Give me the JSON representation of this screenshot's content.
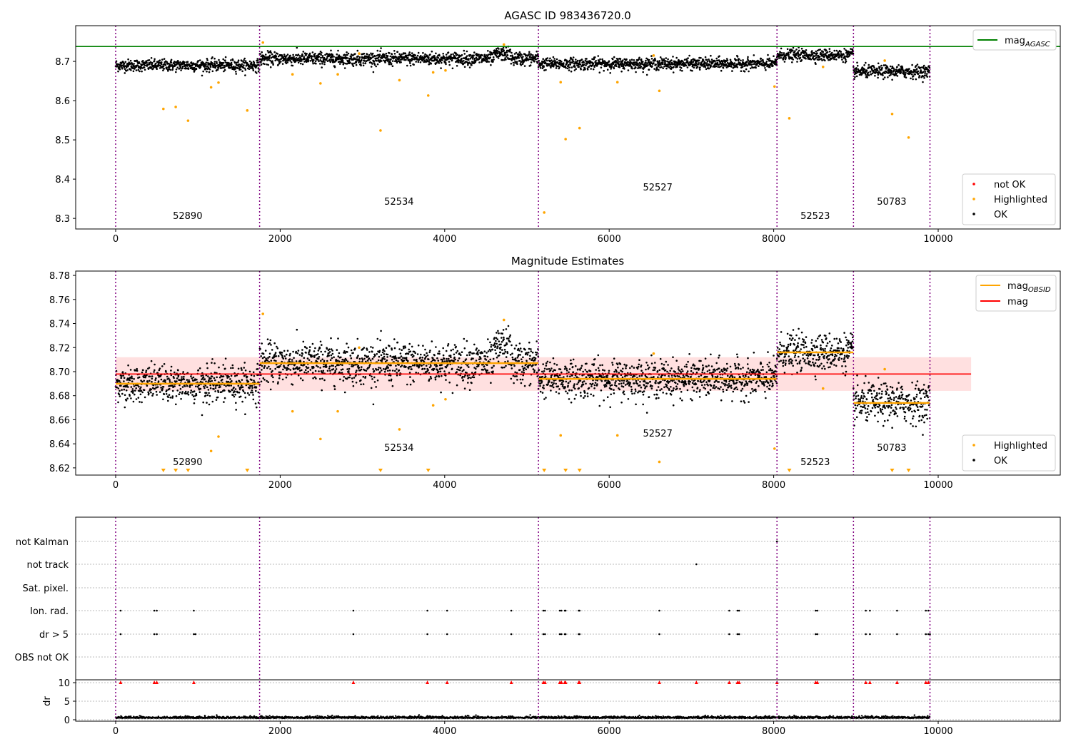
{
  "chart_data": [
    {
      "type": "scatter",
      "title": "AGASC ID 983436720.0",
      "ylim": [
        8.273,
        8.791
      ],
      "xlim": [
        -500,
        11500
      ],
      "yticks": [
        8.3,
        8.4,
        8.5,
        8.6,
        8.7
      ],
      "xticks": [
        0,
        2000,
        4000,
        6000,
        8000,
        10000
      ],
      "mag_agasc": 8.738,
      "legend_lines": [
        {
          "label": "mag",
          "sub": "AGASC",
          "color": "#008000"
        }
      ],
      "legend_points": [
        {
          "label": "not OK",
          "color": "#ff0000"
        },
        {
          "label": "Highlighted",
          "color": "#ffa500"
        },
        {
          "label": "OK",
          "color": "#000000"
        }
      ],
      "legend_placement": [
        "top-right",
        "bottom-right"
      ]
    },
    {
      "type": "scatter",
      "title": "Magnitude Estimates",
      "ylim": [
        8.614,
        8.7836
      ],
      "xlim": [
        -500,
        11500
      ],
      "yticks": [
        8.62,
        8.64,
        8.66,
        8.68,
        8.7,
        8.72,
        8.74,
        8.76,
        8.78
      ],
      "xticks": [
        0,
        2000,
        4000,
        6000,
        8000,
        10000
      ],
      "mag": 8.698,
      "mag_band": [
        8.684,
        8.712
      ],
      "mag_xrange": [
        0,
        10400
      ],
      "legend_lines": [
        {
          "label": "mag",
          "sub": "OBSID",
          "color": "#ffa500"
        },
        {
          "label": "mag",
          "sub": "",
          "color": "#ff0000"
        }
      ],
      "legend_points": [
        {
          "label": "Highlighted",
          "color": "#ffa500"
        },
        {
          "label": "OK",
          "color": "#000000"
        }
      ],
      "legend_placement": [
        "top-right",
        "bottom-right"
      ]
    },
    {
      "type": "scatter",
      "title": "",
      "categories": [
        "not Kalman",
        "not track",
        "Sat. pixel.",
        "Ion. rad.",
        "dr > 5",
        "OBS not OK"
      ],
      "dr_label": "dr",
      "dr_yticks": [
        0,
        5,
        10
      ],
      "xticks": [
        0,
        2000,
        4000,
        6000,
        8000,
        10000
      ],
      "flags": {
        "not Kalman": [
          8040
        ],
        "not track": [
          7060
        ],
        "Sat. pixel.": [],
        "Ion. rad.": [
          60,
          470,
          500,
          950,
          2890,
          3790,
          4030,
          4810,
          5200,
          5220,
          5400,
          5420,
          5460,
          5470,
          5630,
          5640,
          6610,
          7460,
          7560,
          7580,
          8510,
          8530,
          9120,
          9170,
          9500,
          9850,
          9880
        ],
        "dr > 5": [
          60,
          470,
          500,
          950,
          970,
          2890,
          3790,
          4030,
          4810,
          5200,
          5220,
          5400,
          5420,
          5460,
          5470,
          5630,
          5640,
          6610,
          7460,
          7560,
          7580,
          8510,
          8530,
          9120,
          9170,
          9500,
          9850,
          9880,
          9900
        ],
        "OBS not OK": []
      },
      "dr_high": [
        60,
        470,
        500,
        950,
        2890,
        3790,
        4030,
        4810,
        5200,
        5220,
        5400,
        5420,
        5460,
        5470,
        5630,
        5640,
        6610,
        7060,
        7460,
        7560,
        7580,
        8040,
        8510,
        8530,
        9120,
        9170,
        9500,
        9850,
        9880
      ]
    }
  ],
  "obsids": [
    {
      "id": "52890",
      "start": 0,
      "end": 1750,
      "mean": 8.69,
      "sd": 0.0075
    },
    {
      "id": "52534",
      "start": 1750,
      "end": 5140,
      "mean": 8.707,
      "sd": 0.0085
    },
    {
      "id": "52527",
      "start": 5140,
      "end": 8040,
      "mean": 8.694,
      "sd": 0.0075
    },
    {
      "id": "52523",
      "start": 8040,
      "end": 8970,
      "mean": 8.716,
      "sd": 0.0075
    },
    {
      "id": "50783",
      "start": 8970,
      "end": 9900,
      "mean": 8.674,
      "sd": 0.008
    }
  ],
  "obs_boundaries": [
    0,
    1750,
    5140,
    8040,
    8970,
    9900
  ],
  "highlighted": [
    [
      580,
      8.579
    ],
    [
      730,
      8.584
    ],
    [
      880,
      8.549
    ],
    [
      1160,
      8.634
    ],
    [
      1250,
      8.646
    ],
    [
      1600,
      8.575
    ],
    [
      2490,
      8.644
    ],
    [
      2700,
      8.667
    ],
    [
      3220,
      8.524
    ],
    [
      3450,
      8.652
    ],
    [
      3800,
      8.613
    ],
    [
      4010,
      8.677
    ],
    [
      5210,
      8.315
    ],
    [
      5410,
      8.647
    ],
    [
      5470,
      8.502
    ],
    [
      5640,
      8.53
    ],
    [
      6100,
      8.647
    ],
    [
      6610,
      8.625
    ],
    [
      8010,
      8.636
    ],
    [
      8190,
      8.555
    ],
    [
      9440,
      8.566
    ],
    [
      9640,
      8.506
    ],
    [
      1790,
      8.748
    ],
    [
      4720,
      8.743
    ],
    [
      9350,
      8.702
    ],
    [
      6540,
      8.715
    ],
    [
      2150,
      8.667
    ],
    [
      3860,
      8.672
    ],
    [
      2960,
      8.72
    ],
    [
      8600,
      8.686
    ]
  ]
}
